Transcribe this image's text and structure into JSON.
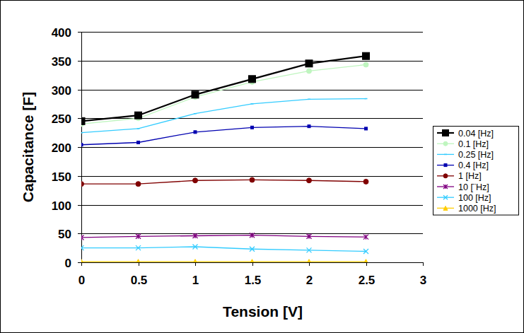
{
  "chart_data": {
    "type": "line",
    "x_label": "Tension [V]",
    "y_label": "Capacitance [F]",
    "x": [
      0,
      0.5,
      1,
      1.5,
      2,
      2.5
    ],
    "xlim": [
      0,
      3
    ],
    "xticks": [
      0,
      0.5,
      1,
      1.5,
      2,
      2.5,
      3
    ],
    "ylim": [
      0,
      400
    ],
    "yticks": [
      0,
      50,
      100,
      150,
      200,
      250,
      300,
      350,
      400
    ],
    "grid": true,
    "legend": "right",
    "series": [
      {
        "name": "0.04 [Hz]",
        "color": "#000000",
        "marker": "square",
        "values": [
          245,
          255,
          291,
          318,
          345,
          358
        ]
      },
      {
        "name": "0.1 [Hz]",
        "color": "#bff5bf",
        "marker": "circle",
        "values": [
          240,
          250,
          287,
          313,
          332,
          343
        ]
      },
      {
        "name": "0.25 [Hz]",
        "color": "#33ccff",
        "marker": "none",
        "values": [
          225,
          232,
          258,
          275,
          283,
          284
        ]
      },
      {
        "name": "0.4 [Hz]",
        "color": "#0000b0",
        "marker": "square",
        "values": [
          204,
          208,
          226,
          234,
          236,
          232
        ]
      },
      {
        "name": "1 [Hz]",
        "color": "#800000",
        "marker": "circle",
        "values": [
          136,
          136,
          142,
          143,
          142,
          140
        ]
      },
      {
        "name": "10 [¨Hz]",
        "color": "#800080",
        "marker": "asterisk",
        "values": [
          43,
          45,
          46,
          47,
          45,
          44
        ]
      },
      {
        "name": "100 [Hz]",
        "color": "#33ccff",
        "marker": "x",
        "values": [
          25,
          25,
          27,
          23,
          21,
          19
        ]
      },
      {
        "name": "1000 [Hz]",
        "color": "#ffcc00",
        "marker": "triangle",
        "values": [
          1,
          1,
          1,
          1,
          1,
          1
        ]
      }
    ]
  }
}
